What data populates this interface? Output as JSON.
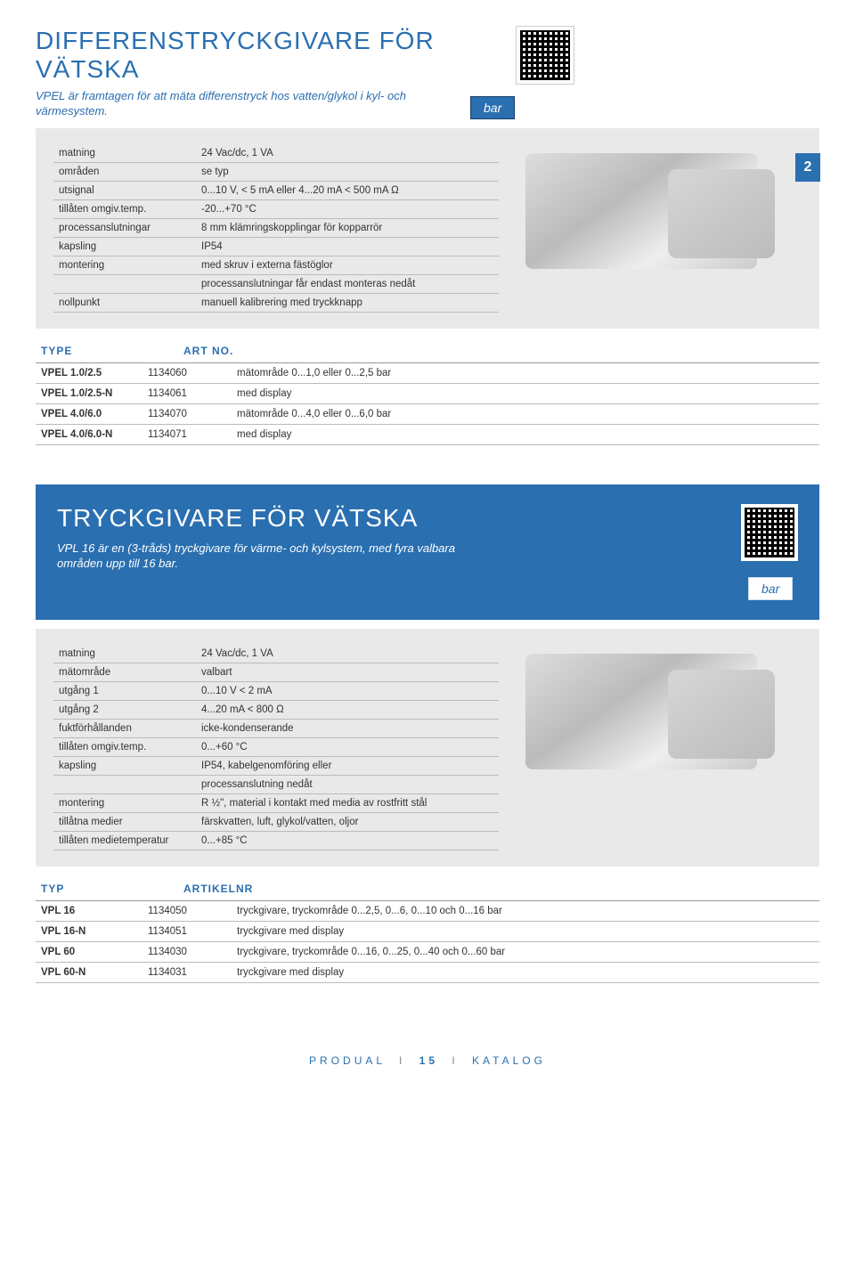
{
  "section1": {
    "title": "DIFFERENSTRYCKGIVARE FÖR VÄTSKA",
    "subtitle": "VPEL är framtagen för att mäta differenstryck hos vatten/glykol i kyl- och värmesystem.",
    "badge": "bar",
    "page_index": "2",
    "specs": [
      {
        "label": "matning",
        "value": "24 Vac/dc, 1 VA"
      },
      {
        "label": "områden",
        "value": "se typ"
      },
      {
        "label": "utsignal",
        "value": "0...10 V, < 5 mA eller 4...20 mA < 500 mA Ω"
      },
      {
        "label": "tillåten omgiv.temp.",
        "value": "-20...+70 °C"
      },
      {
        "label": "processanslutningar",
        "value": "8 mm klämringskopplingar för kopparrör"
      },
      {
        "label": "kapsling",
        "value": "IP54"
      },
      {
        "label": "montering",
        "value": "med skruv i externa fästöglor"
      },
      {
        "label": "",
        "value": "processanslutningar får endast monteras nedåt"
      },
      {
        "label": "nollpunkt",
        "value": "manuell kalibrering med tryckknapp"
      }
    ],
    "header": {
      "col1": "TYPE",
      "col2": "ART NO."
    },
    "rows": [
      {
        "type": "VPEL 1.0/2.5",
        "art": "1134060",
        "desc": "mätområde 0...1,0 eller 0...2,5 bar"
      },
      {
        "type": "VPEL 1.0/2.5-N",
        "art": "1134061",
        "desc": "med display"
      },
      {
        "type": "VPEL 4.0/6.0",
        "art": "1134070",
        "desc": "mätområde 0...4,0 eller 0...6,0 bar"
      },
      {
        "type": "VPEL 4.0/6.0-N",
        "art": "1134071",
        "desc": "med display"
      }
    ]
  },
  "section2": {
    "title": "TRYCKGIVARE FÖR VÄTSKA",
    "subtitle": "VPL 16 är en (3-tråds) tryckgivare för värme- och kylsystem, med fyra valbara områden upp till 16 bar.",
    "badge": "bar",
    "specs": [
      {
        "label": "matning",
        "value": "24 Vac/dc, 1 VA"
      },
      {
        "label": "mätområde",
        "value": "valbart"
      },
      {
        "label": "utgång 1",
        "value": "0...10 V < 2 mA"
      },
      {
        "label": "utgång 2",
        "value": "4...20 mA < 800 Ω"
      },
      {
        "label": "fuktförhållanden",
        "value": "icke-kondenserande"
      },
      {
        "label": "tillåten omgiv.temp.",
        "value": "0...+60 °C"
      },
      {
        "label": "kapsling",
        "value": "IP54, kabelgenomföring eller"
      },
      {
        "label": "",
        "value": "processanslutning nedåt"
      },
      {
        "label": "montering",
        "value": "R ½\", material i kontakt med media av rostfritt stål"
      },
      {
        "label": "tillåtna medier",
        "value": "färskvatten, luft, glykol/vatten, oljor"
      },
      {
        "label": "tillåten medietemperatur",
        "value": "0...+85 °C"
      }
    ],
    "header": {
      "col1": "TYP",
      "col2": "ARTIKELNR"
    },
    "rows": [
      {
        "type": "VPL 16",
        "art": "1134050",
        "desc": "tryckgivare, tryckområde 0...2,5, 0...6, 0...10 och 0...16 bar"
      },
      {
        "type": "VPL 16-N",
        "art": "1134051",
        "desc": "tryckgivare med display"
      },
      {
        "type": "VPL 60",
        "art": "1134030",
        "desc": "tryckgivare, tryckområde 0...16, 0...25, 0...40 och 0...60 bar"
      },
      {
        "type": "VPL 60-N",
        "art": "1134031",
        "desc": "tryckgivare med display"
      }
    ]
  },
  "footer": {
    "brand": "PRODUAL",
    "page": "15",
    "label": "KATALOG"
  },
  "colors": {
    "accent": "#2a6fb0",
    "gray_bg": "#e9e9e9",
    "border": "#bbbbbb",
    "text": "#333333"
  }
}
